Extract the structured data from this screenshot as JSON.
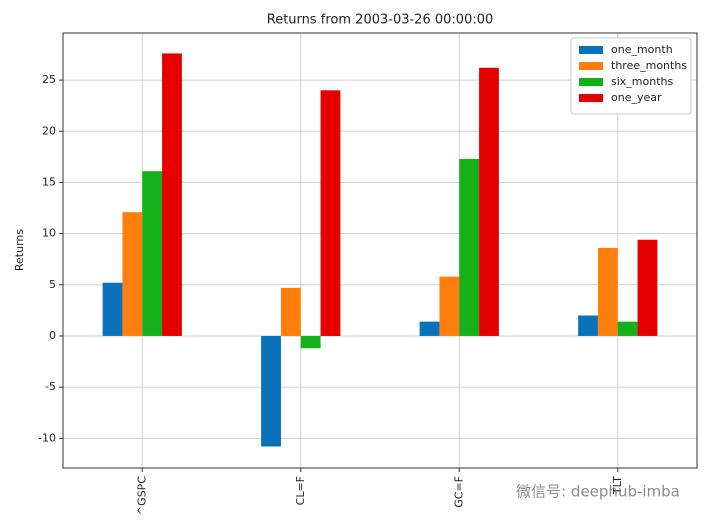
{
  "chart_data": {
    "type": "bar",
    "title": "Returns from 2003-03-26 00:00:00",
    "ylabel": "Returns",
    "categories": [
      "^GSPC",
      "CL=F",
      "GC=F",
      "TLT"
    ],
    "series": [
      {
        "name": "one_month",
        "color": "#0a72ba",
        "values": [
          5.2,
          -10.8,
          1.4,
          2.0
        ]
      },
      {
        "name": "three_months",
        "color": "#ff7f0e",
        "values": [
          12.1,
          4.7,
          5.8,
          8.6
        ]
      },
      {
        "name": "six_months",
        "color": "#16b01a",
        "values": [
          16.1,
          -1.2,
          17.3,
          1.4
        ]
      },
      {
        "name": "one_year",
        "color": "#e50000",
        "values": [
          27.6,
          24.0,
          26.2,
          9.4
        ]
      }
    ],
    "ylim": [
      -12.9,
      29.6
    ],
    "yticks": [
      -10,
      -5,
      0,
      5,
      10,
      15,
      20,
      25
    ],
    "grid": true,
    "legend": "upper right",
    "watermark": "微信号: deephub-imba"
  }
}
